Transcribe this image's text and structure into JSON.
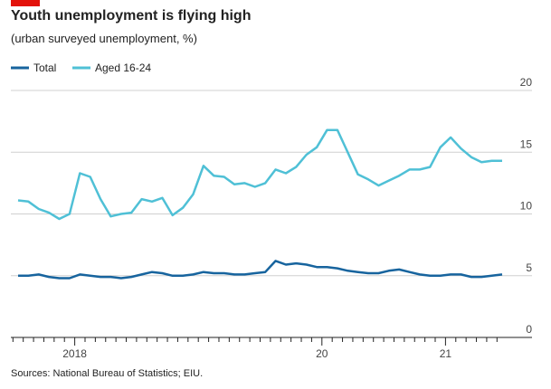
{
  "chart_data": {
    "type": "line",
    "title": "Youth unemployment is flying high",
    "subtitle": "(urban surveyed unemployment, %)",
    "source": "Sources: National Bureau of Statistics; EIU.",
    "categories": [
      null,
      null,
      null,
      null,
      null,
      null,
      "2018",
      null,
      null,
      null,
      null,
      null,
      null,
      null,
      null,
      null,
      null,
      null,
      null,
      null,
      null,
      null,
      null,
      null,
      null,
      null,
      null,
      null,
      null,
      null,
      "20",
      null,
      null,
      null,
      null,
      null,
      null,
      null,
      null,
      null,
      null,
      null,
      "21",
      null,
      null,
      null,
      null,
      null
    ],
    "series": [
      {
        "name": "Total",
        "color": "#17649e",
        "values": [
          5.0,
          5.0,
          5.1,
          4.9,
          4.8,
          4.8,
          5.1,
          5.0,
          4.9,
          4.9,
          4.8,
          4.9,
          5.1,
          5.3,
          5.2,
          5.0,
          5.0,
          5.1,
          5.3,
          5.2,
          5.2,
          5.1,
          5.1,
          5.2,
          5.3,
          6.2,
          5.9,
          6.0,
          5.9,
          5.7,
          5.7,
          5.6,
          5.4,
          5.3,
          5.2,
          5.2,
          5.4,
          5.5,
          5.3,
          5.1,
          5.0,
          5.0,
          5.1,
          5.1,
          4.9,
          4.9,
          5.0,
          5.1
        ]
      },
      {
        "name": "Aged 16-24",
        "color": "#4fc0d6",
        "values": [
          11.1,
          11.0,
          10.4,
          10.1,
          9.6,
          10.0,
          13.3,
          13.0,
          11.2,
          9.8,
          10.0,
          10.1,
          11.2,
          11.0,
          11.3,
          9.9,
          10.5,
          11.6,
          13.9,
          13.1,
          13.0,
          12.4,
          12.5,
          12.2,
          12.5,
          13.6,
          13.3,
          13.8,
          14.8,
          15.4,
          16.8,
          16.8,
          15.0,
          13.2,
          12.8,
          12.3,
          12.7,
          13.1,
          13.6,
          13.6,
          13.8,
          15.4,
          16.2,
          15.3,
          14.6,
          14.2,
          14.3,
          14.3
        ]
      }
    ],
    "ylim": [
      0,
      20
    ],
    "yticks": [
      0,
      5,
      10,
      15,
      20
    ],
    "grid": true
  }
}
